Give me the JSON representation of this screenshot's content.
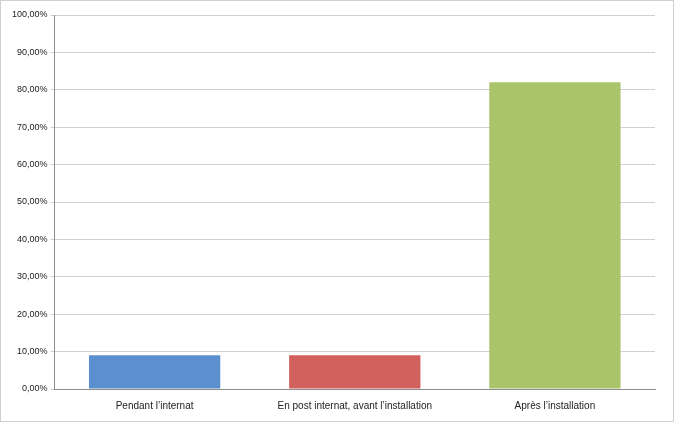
{
  "chart_data": {
    "type": "bar",
    "categories": [
      "Pendant l’internat",
      "En post internat, avant l’installation",
      "Après l’installation"
    ],
    "values": [
      9,
      9,
      82
    ],
    "colors": [
      "#5b8fce",
      "#d2605c",
      "#a9c46b"
    ],
    "ylim": [
      0,
      100
    ],
    "yticks": [
      {
        "value": 0,
        "label": "0,00%"
      },
      {
        "value": 10,
        "label": "10,00%"
      },
      {
        "value": 20,
        "label": "20,00%"
      },
      {
        "value": 30,
        "label": "30,00%"
      },
      {
        "value": 40,
        "label": "40,00%"
      },
      {
        "value": 50,
        "label": "50,00%"
      },
      {
        "value": 60,
        "label": "60,00%"
      },
      {
        "value": 70,
        "label": "70,00%"
      },
      {
        "value": 80,
        "label": "80,00%"
      },
      {
        "value": 90,
        "label": "90,00%"
      },
      {
        "value": 100,
        "label": "100,00%"
      }
    ],
    "grid": true
  }
}
